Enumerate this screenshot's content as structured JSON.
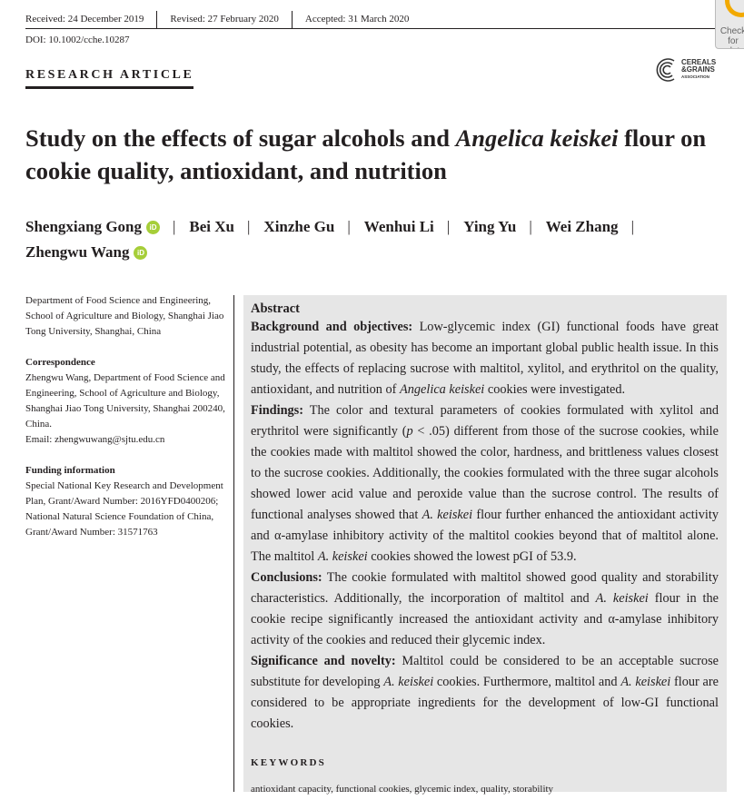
{
  "header": {
    "received": "Received: 24 December 2019",
    "revised": "Revised: 27 February 2020",
    "accepted": "Accepted: 31 March 2020",
    "doi": "DOI: 10.1002/cche.10287",
    "check_label": "Check for updates"
  },
  "article_type": "RESEARCH ARTICLE",
  "logo": {
    "line1": "CEREALS",
    "line2": "&GRAINS",
    "line3": "ASSOCIATION"
  },
  "title": {
    "part1": "Study on the effects of sugar alcohols and ",
    "italic": "Angelica keiskei",
    "part2": " flour on cookie quality, antioxidant, and nutrition"
  },
  "authors": [
    {
      "name": "Shengxiang Gong",
      "orcid": true
    },
    {
      "name": "Bei Xu"
    },
    {
      "name": "Xinzhe Gu"
    },
    {
      "name": "Wenhui Li"
    },
    {
      "name": "Ying Yu"
    },
    {
      "name": "Wei Zhang"
    },
    {
      "name": "Zhengwu Wang",
      "orcid": true
    }
  ],
  "orcid_label": "iD",
  "sidebar": {
    "affiliation": "Department of Food Science and Engineering, School of Agriculture and Biology, Shanghai Jiao Tong University, Shanghai, China",
    "correspondence_heading": "Correspondence",
    "correspondence": "Zhengwu Wang, Department of Food Science and Engineering, School of Agriculture and Biology, Shanghai Jiao Tong University, Shanghai 200240, China.",
    "email": "Email: zhengwuwang@sjtu.edu.cn",
    "funding_heading": "Funding information",
    "funding": "Special National Key Research and Development Plan, Grant/Award Number: 2016YFD0400206; National Natural Science Foundation of China, Grant/Award Number: 31571763"
  },
  "abstract": {
    "heading": "Abstract",
    "paragraphs": [
      {
        "label": "Background and objectives:",
        "segments": [
          {
            "t": " Low-glycemic index (GI) functional foods have great industrial potential, as obesity has become an important global public health issue. In this study, the effects of replacing sucrose with maltitol, xylitol, and erythritol on the quality, antioxidant, and nutrition of "
          },
          {
            "t": "Angelica keiskei",
            "i": true
          },
          {
            "t": " cookies were investigated."
          }
        ]
      },
      {
        "label": "Findings:",
        "segments": [
          {
            "t": " The color and textural parameters of cookies formulated with xylitol and erythritol were significantly ("
          },
          {
            "t": "p",
            "i": true
          },
          {
            "t": " < .05) different from those of the sucrose cookies, while the cookies made with maltitol showed the color, hardness, and brittleness values closest to the sucrose cookies. Additionally, the cookies formulated with the three sugar alcohols showed lower acid value and peroxide value than the sucrose control. The results of functional analyses showed that "
          },
          {
            "t": "A. keiskei",
            "i": true
          },
          {
            "t": " flour further enhanced the antioxidant activity and α-amylase inhibitory activity of the maltitol cookies beyond that of maltitol alone. The maltitol "
          },
          {
            "t": "A. keiskei",
            "i": true
          },
          {
            "t": " cookies showed the lowest pGI of 53.9."
          }
        ]
      },
      {
        "label": "Conclusions:",
        "segments": [
          {
            "t": " The cookie formulated with maltitol showed good quality and storability characteristics. Additionally, the incorporation of maltitol and "
          },
          {
            "t": "A. keiskei",
            "i": true
          },
          {
            "t": " flour in the cookie recipe significantly increased the antioxidant activity and α-amylase inhibitory activity of the cookies and reduced their glycemic index."
          }
        ]
      },
      {
        "label": "Significance and novelty:",
        "segments": [
          {
            "t": " Maltitol could be considered to be an acceptable sucrose substitute for developing "
          },
          {
            "t": "A. keiskei",
            "i": true
          },
          {
            "t": " cookies. Furthermore, maltitol and "
          },
          {
            "t": "A. keiskei",
            "i": true
          },
          {
            "t": " flour are considered to be appropriate ingredients for the development of low-GI functional cookies."
          }
        ]
      }
    ],
    "keywords_heading": "KEYWORDS",
    "keywords": "antioxidant capacity, functional cookies, glycemic index, quality, storability"
  }
}
